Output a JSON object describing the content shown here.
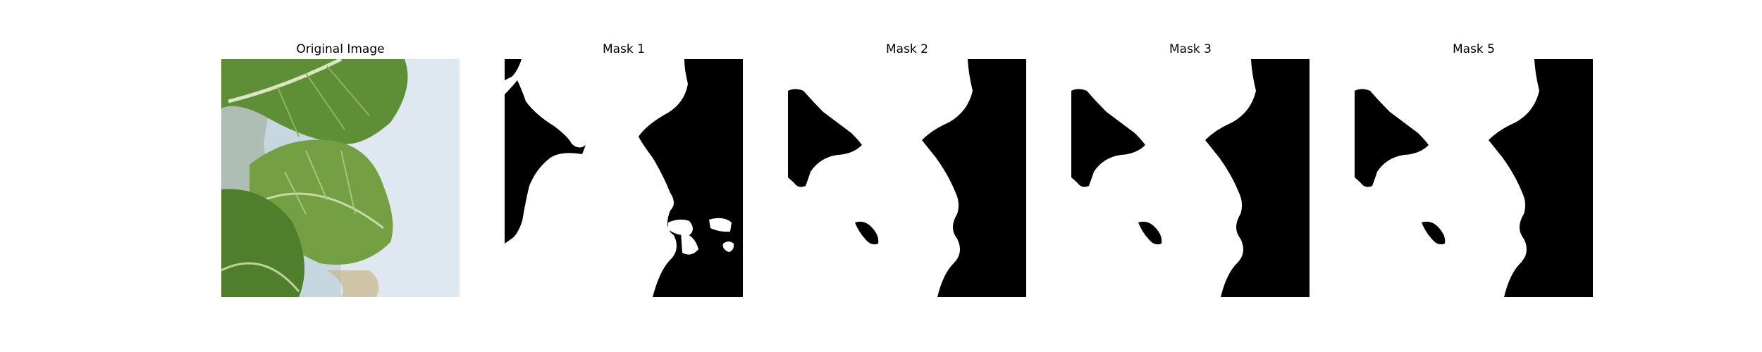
{
  "figure": {
    "panels": [
      {
        "title": "Original Image",
        "kind": "photo",
        "subject": "leafy green vegetable leaves"
      },
      {
        "title": "Mask 1",
        "kind": "binary-mask"
      },
      {
        "title": "Mask 2",
        "kind": "binary-mask"
      },
      {
        "title": "Mask 3",
        "kind": "binary-mask"
      },
      {
        "title": "Mask 5",
        "kind": "binary-mask"
      }
    ],
    "colors": {
      "mask_foreground": "#ffffff",
      "mask_background": "#000000",
      "leaf_green": "#5f8a3a",
      "leaf_light": "#8bb05a",
      "backdrop": "#dde6ee"
    }
  }
}
